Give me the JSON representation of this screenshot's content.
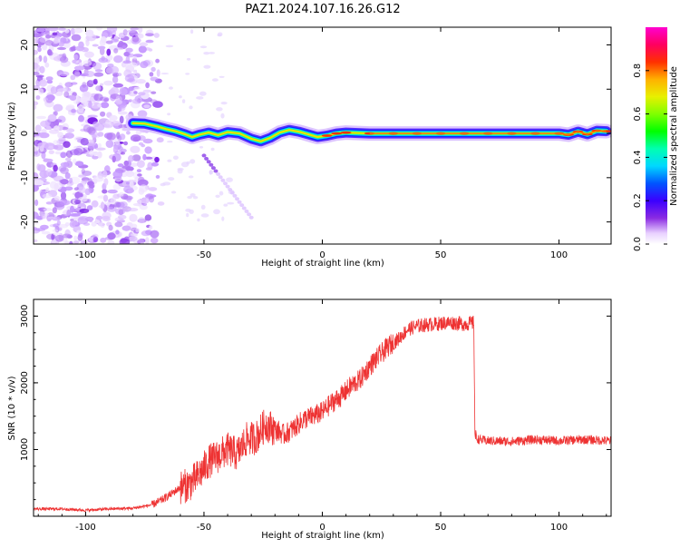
{
  "title": "PAZ1.2024.107.16.26.G12",
  "chart_data": [
    {
      "type": "heatmap",
      "xlabel": "Height of straight line (km)",
      "ylabel": "Frequency (Hz)",
      "xlim": [
        -122,
        122
      ],
      "ylim": [
        -25,
        24
      ],
      "xticks": [
        -100,
        -50,
        0,
        50,
        100
      ],
      "yticks": [
        -20,
        -10,
        0,
        10,
        20
      ],
      "xtick_labels": [
        "-100",
        "-50",
        "0",
        "50",
        "100"
      ],
      "ytick_labels": [
        "-20",
        "-10",
        "0",
        "10",
        "20"
      ],
      "noise_region": {
        "x": [
          -122,
          -68
        ],
        "y": [
          -25,
          24
        ]
      },
      "ridge": {
        "x": [
          -80,
          -75,
          -70,
          -66,
          -62,
          -58,
          -55,
          -52,
          -48,
          -44,
          -40,
          -35,
          -30,
          -26,
          -22,
          -18,
          -14,
          -10,
          -6,
          -2,
          2,
          6,
          10,
          20,
          30,
          40,
          50,
          60,
          70,
          80,
          90,
          100,
          104,
          108,
          112,
          116,
          120
        ],
        "y": [
          2.3,
          2.2,
          1.6,
          1.0,
          0.5,
          -0.2,
          -0.8,
          -0.3,
          0.2,
          -0.4,
          0.3,
          0.0,
          -1.2,
          -1.8,
          -1.0,
          0.2,
          0.8,
          0.4,
          -0.2,
          -0.8,
          -0.5,
          0.0,
          0.2,
          0.0,
          0.0,
          0.0,
          0.0,
          0.0,
          0.0,
          0.0,
          0.0,
          0.0,
          -0.3,
          0.4,
          -0.2,
          0.6,
          0.5
        ]
      },
      "diagonal_streak": {
        "x": [
          -50,
          -30
        ],
        "y": [
          -5,
          -19
        ]
      },
      "colorbar": {
        "label": "Normalized spectral amplitude",
        "range": [
          0,
          1
        ],
        "ticks": [
          0.0,
          0.2,
          0.4,
          0.6,
          0.8
        ],
        "tick_labels": [
          "0.0",
          "0.2",
          "0.4",
          "0.6",
          "0.8"
        ],
        "colormap": "gist_ncar-like (white-purple-blue-cyan-green-yellow-orange-red-magenta)"
      }
    },
    {
      "type": "line",
      "xlabel": "Height of straight line (km)",
      "ylabel": "SNR (10 * v/v)",
      "xlim": [
        -122,
        122
      ],
      "ylim": [
        0,
        3250
      ],
      "xticks": [
        -100,
        -50,
        0,
        50,
        100
      ],
      "yticks": [
        1000,
        2000,
        3000
      ],
      "xtick_labels": [
        "-100",
        "-50",
        "0",
        "50",
        "100"
      ],
      "ytick_labels": [
        "1000",
        "2000",
        "3000"
      ],
      "color": "#ee3333",
      "series": [
        {
          "x": [
            -122,
            -110,
            -100,
            -90,
            -80,
            -72,
            -68,
            -64,
            -60,
            -56,
            -52,
            -48,
            -44,
            -40,
            -36,
            -32,
            -28,
            -24,
            -20,
            -16,
            -12,
            -8,
            -4,
            0,
            4,
            8,
            12,
            16,
            20,
            24,
            28,
            32,
            36,
            40,
            44,
            48,
            52,
            56,
            60,
            64,
            64.5,
            66,
            70,
            80,
            90,
            100,
            110,
            122
          ],
          "values": [
            110,
            110,
            90,
            110,
            120,
            170,
            240,
            330,
            430,
            480,
            620,
            820,
            900,
            1000,
            930,
            1150,
            1180,
            1380,
            1300,
            1220,
            1320,
            1450,
            1500,
            1560,
            1700,
            1800,
            1950,
            2050,
            2250,
            2400,
            2550,
            2650,
            2800,
            2850,
            2870,
            2880,
            2900,
            2900,
            2880,
            2900,
            1200,
            1150,
            1130,
            1120,
            1150,
            1130,
            1150,
            1130
          ]
        }
      ]
    }
  ]
}
